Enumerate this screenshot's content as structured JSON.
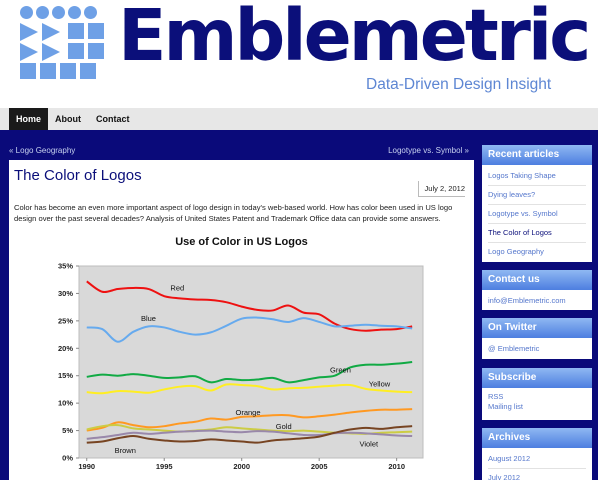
{
  "header": {
    "site_title": "Emblemetric",
    "tagline": "Data-Driven Design Insight"
  },
  "nav": {
    "items": [
      {
        "label": "Home",
        "active": true
      },
      {
        "label": "About",
        "active": false
      },
      {
        "label": "Contact",
        "active": false
      }
    ]
  },
  "pager": {
    "prev": "« Logo Geography",
    "next": "Logotype vs. Symbol »"
  },
  "post": {
    "title": "The Color of Logos",
    "date": "July 2, 2012",
    "body": "Color has become an even more important aspect of logo design in today's web-based world. How has color been used in US logo design over the past several decades? Analysis of United States Patent and Trademark Office data can provide some answers."
  },
  "chart_data": {
    "type": "line",
    "title": "Use of Color in US Logos",
    "xlabel": "",
    "ylabel": "",
    "x": [
      1990,
      1991,
      1992,
      1993,
      1994,
      1995,
      1996,
      1997,
      1998,
      1999,
      2000,
      2001,
      2002,
      2003,
      2004,
      2005,
      2006,
      2007,
      2008,
      2009,
      2010,
      2011
    ],
    "xlim": [
      1989.5,
      2011.7
    ],
    "ylim": [
      0,
      35
    ],
    "x_ticks": [
      "1990",
      "1995",
      "2000",
      "2005",
      "2010"
    ],
    "y_ticks": [
      "0%",
      "5%",
      "10%",
      "15%",
      "20%",
      "25%",
      "30%",
      "35%"
    ],
    "grid": false,
    "legend": "inline labels",
    "series": [
      {
        "name": "Red",
        "color": "#ee1111",
        "values": [
          32.2,
          30.3,
          30.8,
          31.0,
          30.8,
          29.5,
          29.1,
          28.9,
          28.8,
          28.4,
          27.6,
          27.0,
          26.9,
          27.8,
          26.5,
          26.2,
          24.5,
          23.5,
          23.2,
          23.4,
          23.5,
          24.0
        ]
      },
      {
        "name": "Blue",
        "color": "#66aaee",
        "values": [
          23.8,
          23.5,
          21.2,
          23.0,
          24.0,
          23.8,
          23.0,
          22.5,
          22.9,
          24.1,
          25.4,
          25.6,
          25.3,
          24.8,
          25.5,
          24.8,
          24.0,
          24.1,
          24.3,
          24.1,
          24.0,
          23.6
        ]
      },
      {
        "name": "Green",
        "color": "#11aa44",
        "values": [
          14.8,
          15.2,
          15.0,
          15.3,
          15.0,
          14.6,
          14.7,
          14.9,
          13.8,
          14.4,
          14.2,
          14.3,
          14.6,
          13.8,
          14.2,
          14.7,
          15.0,
          16.5,
          17.0,
          17.0,
          17.2,
          17.5
        ]
      },
      {
        "name": "Yellow",
        "color": "#ffee22",
        "values": [
          12.0,
          11.8,
          12.2,
          12.1,
          11.9,
          12.5,
          13.0,
          13.1,
          12.3,
          13.4,
          13.3,
          13.1,
          12.5,
          12.7,
          12.8,
          13.0,
          13.2,
          13.3,
          12.6,
          12.3,
          12.1,
          12.0
        ]
      },
      {
        "name": "Orange",
        "color": "#ff9922",
        "values": [
          5.0,
          5.5,
          6.5,
          6.0,
          5.6,
          5.8,
          6.3,
          6.6,
          7.2,
          7.0,
          7.5,
          7.6,
          7.8,
          7.8,
          7.4,
          7.6,
          7.9,
          8.3,
          8.6,
          8.8,
          8.8,
          8.9
        ]
      },
      {
        "name": "Gold",
        "color": "#cccc44",
        "values": [
          5.2,
          5.8,
          6.0,
          5.4,
          5.2,
          5.0,
          4.8,
          5.0,
          5.2,
          5.6,
          5.4,
          5.2,
          5.0,
          4.9,
          5.0,
          4.8,
          4.6,
          4.5,
          4.4,
          4.6,
          4.7,
          4.8
        ]
      },
      {
        "name": "Violet",
        "color": "#9988aa",
        "values": [
          3.5,
          3.8,
          4.2,
          4.6,
          4.4,
          4.6,
          4.8,
          4.9,
          5.0,
          4.8,
          4.7,
          4.9,
          4.8,
          4.5,
          4.2,
          4.2,
          4.5,
          4.6,
          4.5,
          4.3,
          4.1,
          4.0
        ]
      },
      {
        "name": "Brown",
        "color": "#774422",
        "values": [
          2.8,
          3.0,
          3.6,
          4.0,
          3.5,
          3.2,
          3.0,
          3.1,
          3.4,
          3.2,
          3.0,
          2.8,
          3.2,
          3.4,
          3.6,
          3.9,
          4.6,
          5.2,
          5.5,
          5.3,
          5.6,
          5.8
        ]
      }
    ],
    "labels": [
      {
        "text": "Red",
        "x": 1995.4,
        "y": 30.5
      },
      {
        "text": "Blue",
        "x": 1993.5,
        "y": 25.0
      },
      {
        "text": "Green",
        "x": 2005.7,
        "y": 15.6
      },
      {
        "text": "Yellow",
        "x": 2008.2,
        "y": 13.0
      },
      {
        "text": "Orange",
        "x": 1999.6,
        "y": 7.8
      },
      {
        "text": "Gold",
        "x": 2002.2,
        "y": 5.3
      },
      {
        "text": "Violet",
        "x": 2007.6,
        "y": 2.1
      },
      {
        "text": "Brown",
        "x": 1991.8,
        "y": 0.9
      }
    ]
  },
  "sidebar": {
    "recent": {
      "heading": "Recent articles",
      "items": [
        {
          "label": "Logos Taking Shape"
        },
        {
          "label": "Dying leaves?"
        },
        {
          "label": "Logotype vs. Symbol"
        },
        {
          "label": "The Color of Logos"
        },
        {
          "label": "Logo Geography"
        }
      ]
    },
    "contact": {
      "heading": "Contact us",
      "email": "info@Emblemetric.com"
    },
    "twitter": {
      "heading": "On Twitter",
      "handle": "@ Emblemetric"
    },
    "subscribe": {
      "heading": "Subscribe",
      "items": [
        {
          "label": "RSS"
        },
        {
          "label": "Mailing list"
        }
      ]
    },
    "archives": {
      "heading": "Archives",
      "items": [
        {
          "label": "August 2012"
        },
        {
          "label": "July 2012"
        }
      ]
    }
  },
  "colors": {
    "brand_navy": "#0b0f7a",
    "logo_blue": "#6ea0e6",
    "tagline_blue": "#5d86d3",
    "link_blue": "#5577cc",
    "body_bg": "#0a0a7a",
    "chart_bg": "#d9d9d9"
  }
}
